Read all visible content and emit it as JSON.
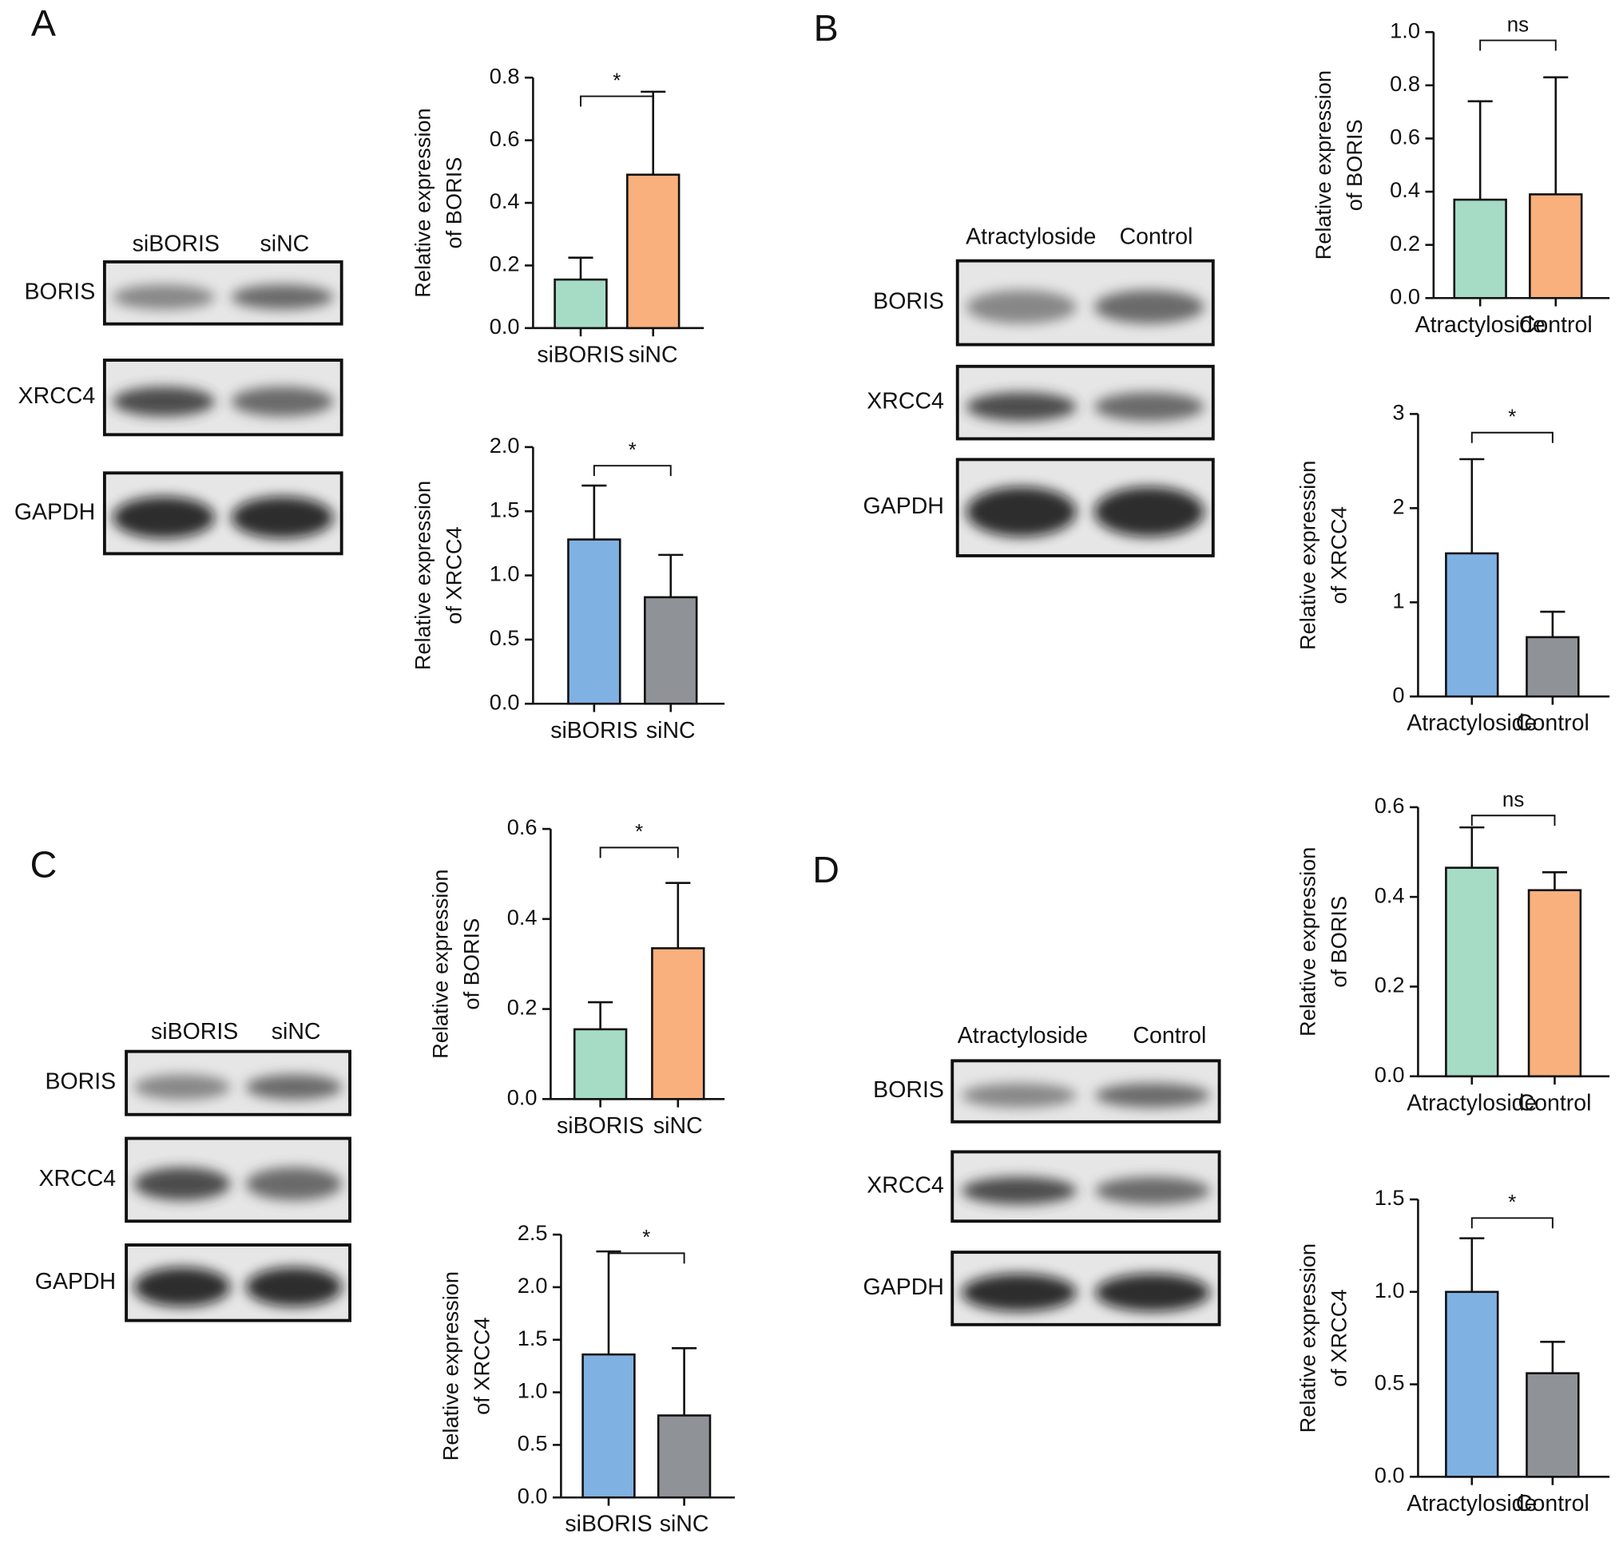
{
  "chart_data": [
    {
      "type": "bar",
      "ylabel": [
        "Relative expression",
        "of BORIS"
      ],
      "categories": [
        "siBORIS",
        "siNC"
      ],
      "values": [
        0.155,
        0.49
      ],
      "errors": [
        0.07,
        0.265
      ],
      "colors": [
        "#a6dcc6",
        "#f9b07c"
      ],
      "ylim": [
        0,
        0.8
      ],
      "yticks": [
        {
          "value": 0,
          "label": "0.0"
        },
        0.2,
        0.4,
        0.6,
        0.8
      ],
      "significance": "*"
    },
    {
      "type": "bar",
      "ylabel": [
        "Relative expression",
        "of XRCC4"
      ],
      "categories": [
        "siBORIS",
        "siNC"
      ],
      "values": [
        1.28,
        0.83
      ],
      "errors": [
        0.42,
        0.33
      ],
      "colors": [
        "#7fb1e2",
        "#8f9297"
      ],
      "ylim": [
        0,
        2.0
      ],
      "yticks": [
        {
          "value": 0,
          "label": "0.0"
        },
        0.5,
        {
          "value": 1,
          "label": "1.0"
        },
        1.5,
        {
          "value": 2,
          "label": "2.0"
        }
      ],
      "significance": "*"
    },
    {
      "type": "bar",
      "ylabel": [
        "Relative expression",
        "of BORIS"
      ],
      "categories": [
        "Atractyloside",
        "Control"
      ],
      "values": [
        0.37,
        0.39
      ],
      "errors": [
        0.37,
        0.44
      ],
      "colors": [
        "#a6dcc6",
        "#f9b07c"
      ],
      "ylim": [
        0,
        1.0
      ],
      "yticks": [
        {
          "value": 0,
          "label": "0.0"
        },
        0.2,
        0.4,
        0.6,
        0.8,
        {
          "value": 1,
          "label": "1.0"
        }
      ],
      "significance": "ns"
    },
    {
      "type": "bar",
      "ylabel": [
        "Relative expression",
        "of XRCC4"
      ],
      "categories": [
        "Atractyloside",
        "Control"
      ],
      "values": [
        1.52,
        0.63
      ],
      "errors": [
        1.0,
        0.27
      ],
      "colors": [
        "#7fb1e2",
        "#8f9297"
      ],
      "ylim": [
        0,
        3
      ],
      "yticks": [
        0,
        1,
        2,
        3
      ],
      "significance": "*"
    },
    {
      "type": "bar",
      "ylabel": [
        "Relative expression",
        "of BORIS"
      ],
      "categories": [
        "siBORIS",
        "siNC"
      ],
      "values": [
        0.155,
        0.335
      ],
      "errors": [
        0.06,
        0.145
      ],
      "colors": [
        "#a6dcc6",
        "#f9b07c"
      ],
      "ylim": [
        0,
        0.6
      ],
      "yticks": [
        {
          "value": 0,
          "label": "0.0"
        },
        0.2,
        0.4,
        0.6
      ],
      "significance": "*"
    },
    {
      "type": "bar",
      "ylabel": [
        "Relative expression",
        "of XRCC4"
      ],
      "categories": [
        "siBORIS",
        "siNC"
      ],
      "values": [
        1.36,
        0.78
      ],
      "errors": [
        0.98,
        0.64
      ],
      "colors": [
        "#7fb1e2",
        "#8f9297"
      ],
      "ylim": [
        0,
        2.5
      ],
      "yticks": [
        {
          "value": 0,
          "label": "0.0"
        },
        0.5,
        {
          "value": 1,
          "label": "1.0"
        },
        1.5,
        {
          "value": 2,
          "label": "2.0"
        },
        2.5
      ],
      "significance": "*"
    },
    {
      "type": "bar",
      "ylabel": [
        "Relative expression",
        "of BORIS"
      ],
      "categories": [
        "Atractyloside",
        "Control"
      ],
      "values": [
        0.465,
        0.415
      ],
      "errors": [
        0.09,
        0.04
      ],
      "colors": [
        "#a6dcc6",
        "#f9b07c"
      ],
      "ylim": [
        0,
        0.6
      ],
      "yticks": [
        {
          "value": 0,
          "label": "0.0"
        },
        0.2,
        0.4,
        0.6
      ],
      "significance": "ns"
    },
    {
      "type": "bar",
      "ylabel": [
        "Relative expression",
        "of XRCC4"
      ],
      "categories": [
        "Atractyloside",
        "Control"
      ],
      "values": [
        1.0,
        0.56
      ],
      "errors": [
        0.29,
        0.17
      ],
      "colors": [
        "#7fb1e2",
        "#8f9297"
      ],
      "ylim": [
        0,
        1.5
      ],
      "yticks": [
        {
          "value": 0,
          "label": "0.0"
        },
        0.5,
        {
          "value": 1,
          "label": "1.0"
        },
        1.5
      ],
      "significance": "*"
    }
  ],
  "blots": [
    {
      "label": "A",
      "lanes": [
        "siBORIS",
        "siNC"
      ],
      "rows": [
        "BORIS",
        "XRCC4",
        "GAPDH"
      ]
    },
    {
      "label": "B",
      "lanes": [
        "Atractyloside",
        "Control"
      ],
      "rows": [
        "BORIS",
        "XRCC4",
        "GAPDH"
      ]
    },
    {
      "label": "C",
      "lanes": [
        "siBORIS",
        "siNC"
      ],
      "rows": [
        "BORIS",
        "XRCC4",
        "GAPDH"
      ]
    },
    {
      "label": "D",
      "lanes": [
        "Atractyloside",
        "Control"
      ],
      "rows": [
        "BORIS",
        "XRCC4",
        "GAPDH"
      ]
    }
  ]
}
